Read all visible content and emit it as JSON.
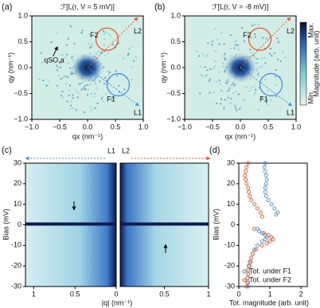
{
  "chart_data": [
    {
      "type": "heatmap",
      "panel_label": "(a)",
      "title": "ℱ[L(r, V = 5 mV)]",
      "xlabel": "qx (nm⁻¹)",
      "ylabel": "qy (nm⁻¹)",
      "xlim": [
        -1,
        1
      ],
      "ylim": [
        -1,
        1
      ],
      "xticks": [
        {
          "value": -1,
          "label": "−1.0"
        },
        {
          "value": -0.5,
          "label": "−0.5"
        },
        {
          "value": 0,
          "label": "0.0"
        },
        0.5,
        {
          "value": 1,
          "label": "1.0"
        }
      ],
      "yticks": [
        {
          "value": -1,
          "label": "−1.0"
        },
        {
          "value": -0.5,
          "label": "−0.5"
        },
        {
          "value": 0,
          "label": "0.0"
        },
        0.5,
        {
          "value": 1,
          "label": "1.0"
        }
      ],
      "annotations": [
        "F1",
        "F2",
        "L1",
        "L2",
        "qSO,a"
      ]
    },
    {
      "type": "heatmap",
      "panel_label": "(b)",
      "title": "ℱ[L(r, V = -8 mV)]",
      "xlabel": "qx (nm⁻¹)",
      "ylabel": "qy (nm⁻¹)",
      "xlim": [
        -1,
        1
      ],
      "ylim": [
        -1,
        1
      ],
      "xticks": [
        {
          "value": -1,
          "label": "−1.0"
        },
        {
          "value": -0.5,
          "label": "−0.5"
        },
        {
          "value": 0,
          "label": "0.0"
        },
        0.5,
        {
          "value": 1,
          "label": "1.0"
        }
      ],
      "yticks": [
        {
          "value": -1,
          "label": "−1.0"
        },
        {
          "value": -0.5,
          "label": "−0.5"
        },
        {
          "value": 0,
          "label": "0.0"
        },
        0.5,
        {
          "value": 1,
          "label": "1.0"
        }
      ],
      "annotations": [
        "F1",
        "F2",
        "L1",
        "L2"
      ],
      "colorbar": {
        "max_label": "Max.",
        "min_label": "Min.",
        "label": "Magnitude (arb. unit)"
      }
    },
    {
      "type": "linecut",
      "panel_label": "(c)",
      "xlabel": "|q| (nm⁻¹)",
      "ylabel": "Bias (mV)",
      "ylim": [
        -30,
        30
      ],
      "yticks": [
        -30,
        -20,
        -10,
        0,
        10,
        20,
        30
      ],
      "panels": [
        {
          "label": "L1",
          "xlim": [
            1.1,
            0
          ],
          "xticks": [
            1,
            0.5,
            0
          ]
        },
        {
          "label": "L2",
          "xlim": [
            0,
            1
          ],
          "xticks": [
            0.5,
            1
          ]
        }
      ]
    },
    {
      "type": "scatter",
      "panel_label": "(d)",
      "xlabel": "Tot. magnitude (arb. unit)",
      "ylabel": "Bias (mV)",
      "xlim": [
        0,
        2.2
      ],
      "xticks": [
        0,
        1,
        2
      ],
      "ylim": [
        -30,
        30
      ],
      "yticks": [
        -30,
        -20,
        -10,
        0,
        10,
        20,
        30
      ],
      "series": [
        {
          "name": "Tot. under F1",
          "color": "#4a90d9",
          "y": [
            30,
            28,
            26,
            24,
            22,
            20,
            18,
            16,
            14,
            12,
            10,
            8,
            6,
            5,
            -2,
            -3,
            -4,
            -5,
            -6,
            -7,
            -8,
            -10,
            -12,
            -14,
            -16,
            -18,
            -20,
            -22,
            -24,
            -26,
            -28,
            -30
          ],
          "x": [
            0.85,
            0.82,
            0.85,
            0.88,
            0.9,
            0.88,
            0.85,
            0.85,
            0.88,
            0.95,
            1.05,
            1.15,
            1.25,
            1.2,
            0.6,
            0.65,
            0.75,
            0.85,
            0.9,
            0.85,
            0.75,
            0.6,
            0.5,
            0.45,
            0.4,
            0.38,
            0.35,
            0.3,
            0.3,
            0.28,
            0.3,
            0.3
          ]
        },
        {
          "name": "Tot. under F2",
          "color": "#e8582a",
          "y": [
            30,
            28,
            26,
            24,
            22,
            20,
            18,
            16,
            14,
            12,
            10,
            8,
            6,
            4,
            -2,
            -4,
            -5,
            -6,
            -7,
            -8,
            -9,
            -10,
            -12,
            -14,
            -16,
            -18,
            -20,
            -22,
            -24,
            -26,
            -28,
            -30
          ],
          "x": [
            0.3,
            0.25,
            0.22,
            0.2,
            0.22,
            0.25,
            0.3,
            0.32,
            0.35,
            0.4,
            0.5,
            0.6,
            0.7,
            0.75,
            0.5,
            0.8,
            0.95,
            1.05,
            1.1,
            1.0,
            0.9,
            0.75,
            0.55,
            0.45,
            0.4,
            0.35,
            0.32,
            0.3,
            0.3,
            0.28,
            0.28,
            0.25
          ]
        }
      ]
    }
  ]
}
